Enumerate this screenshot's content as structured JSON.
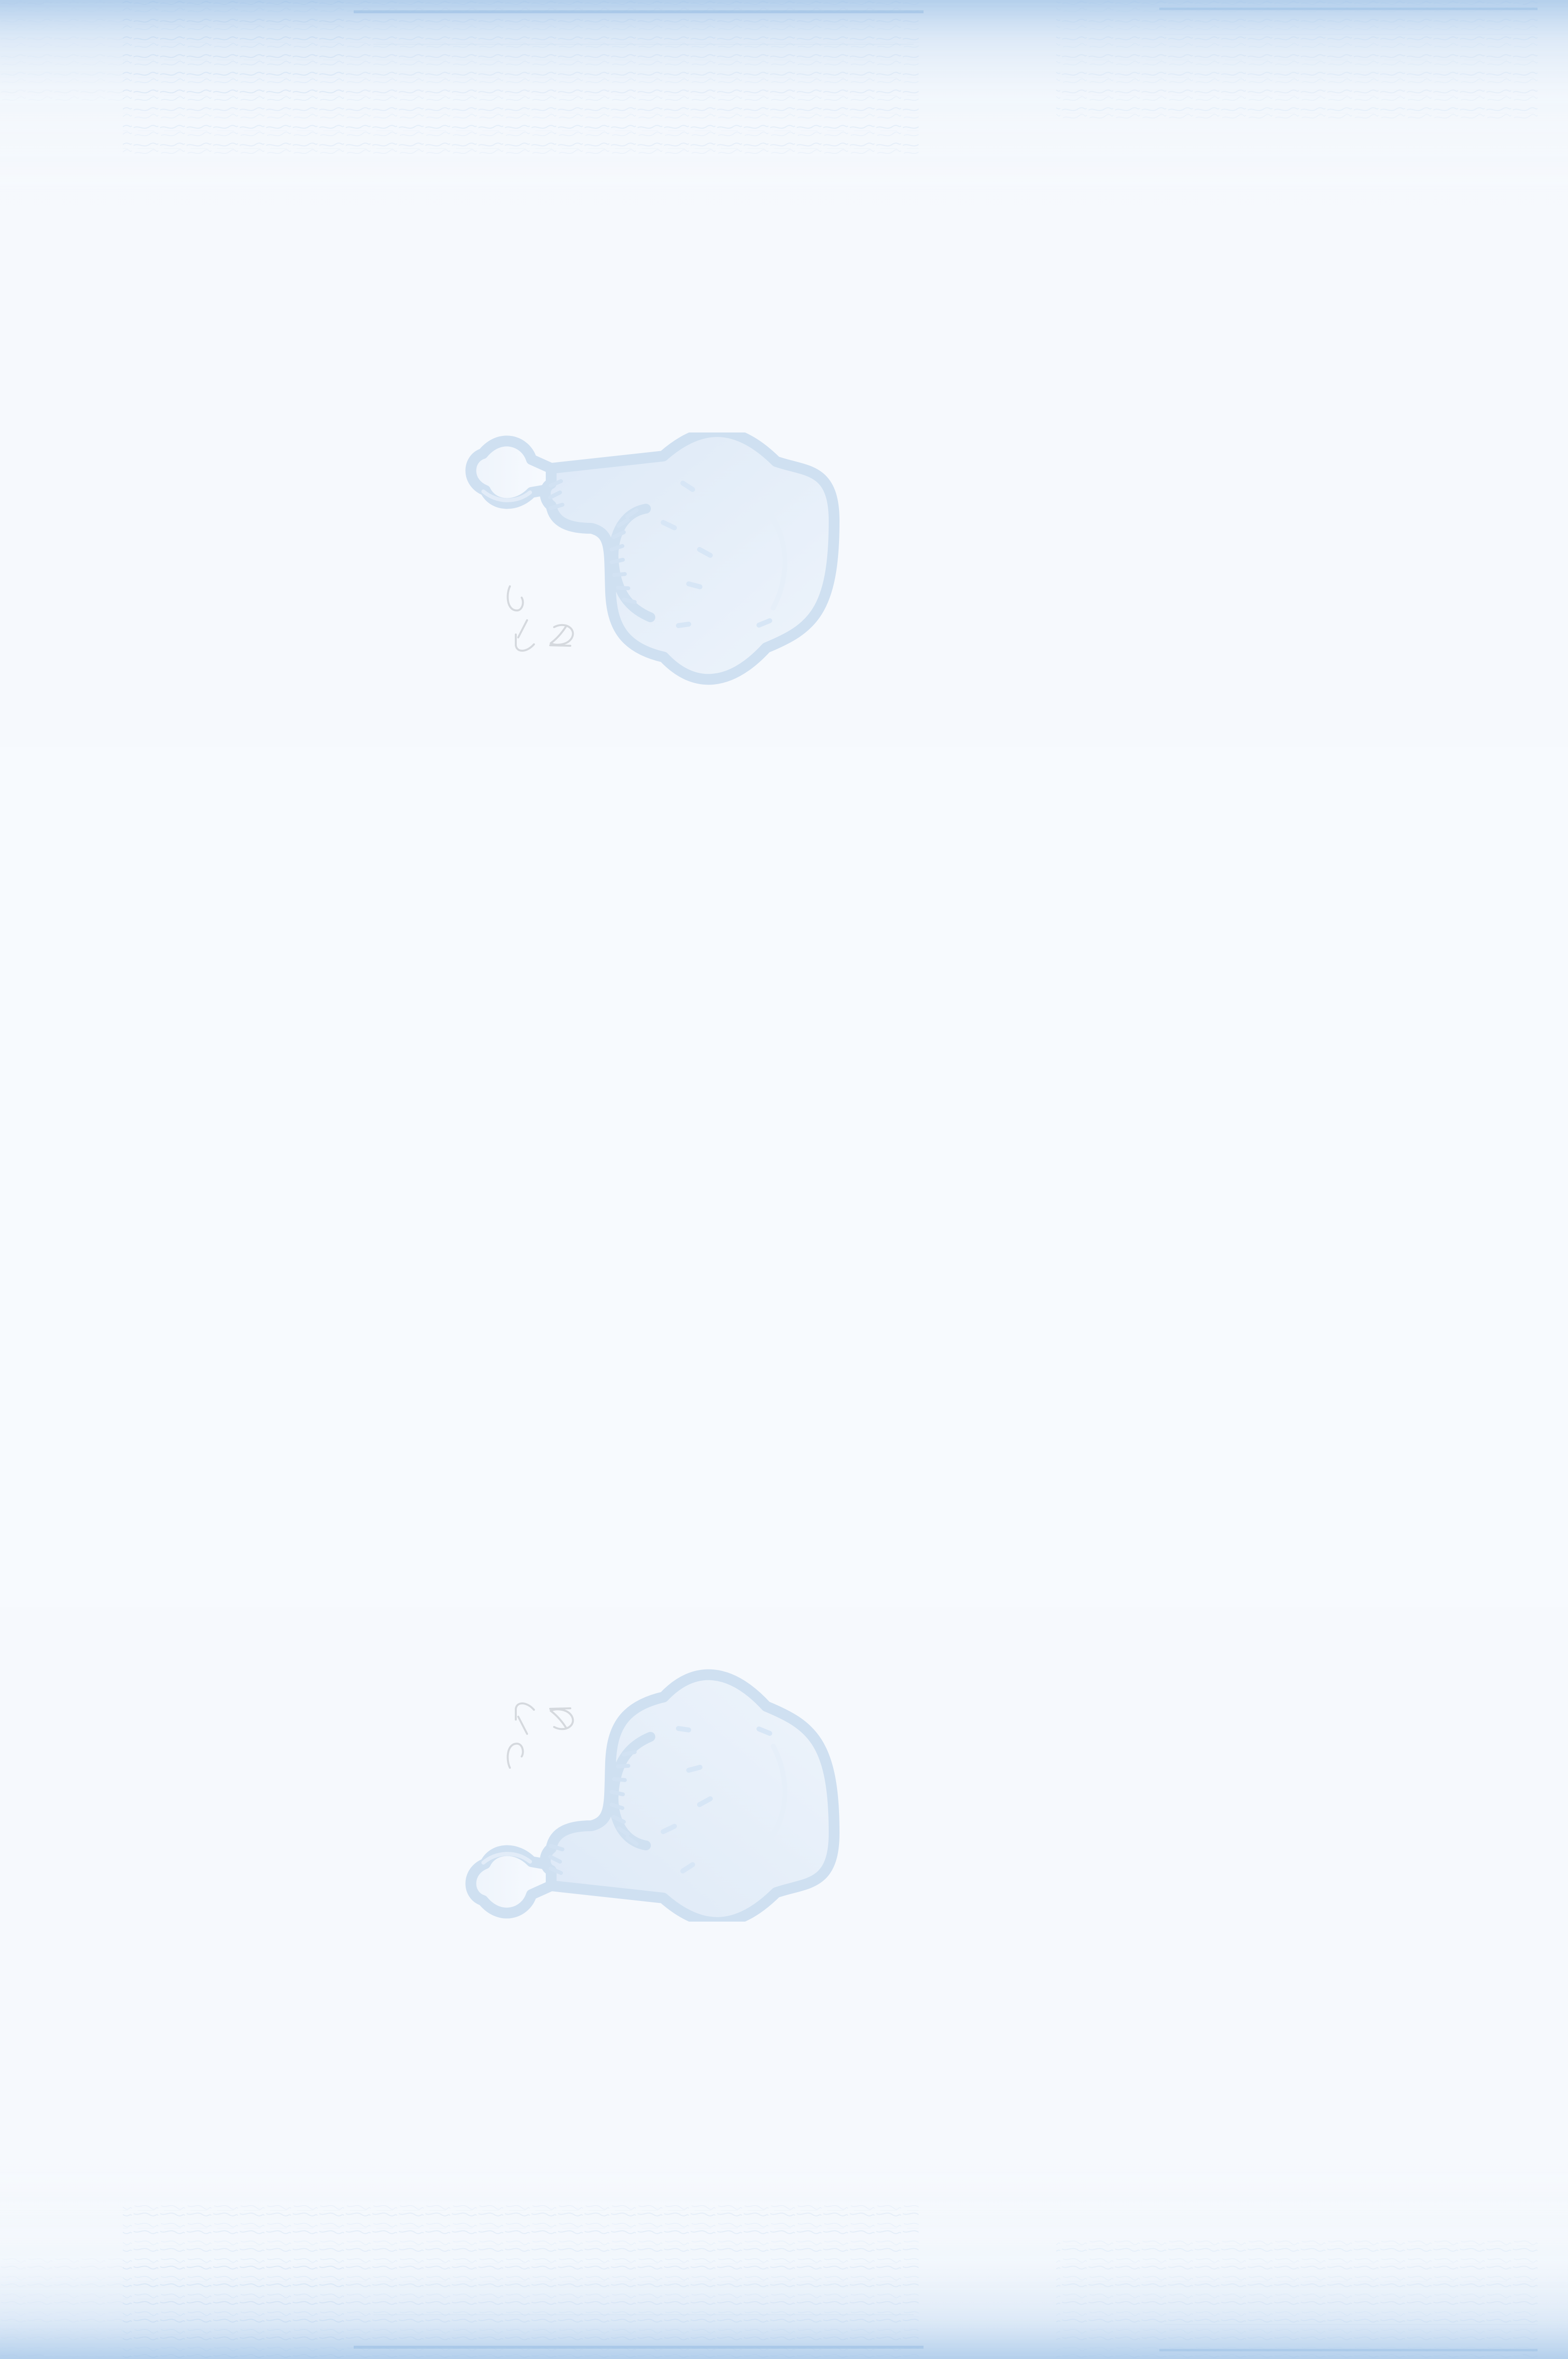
{
  "scene": {
    "background": "#f6f9fd",
    "accent": "#d3e2f3",
    "outline": "#cfe0f1",
    "band_color": "#9fc2e6",
    "icon_name": "drumstick-icon"
  }
}
